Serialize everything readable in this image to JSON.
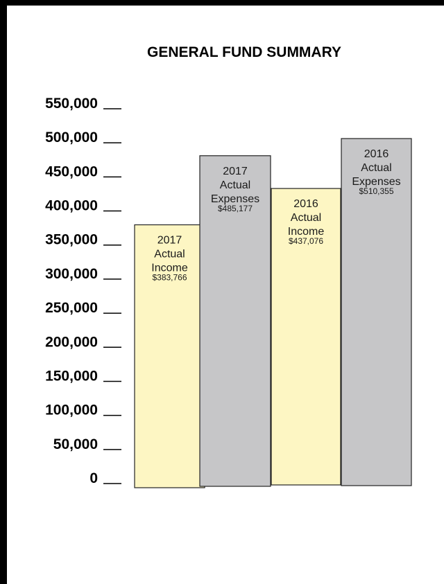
{
  "chart_data": {
    "type": "bar",
    "title": "GENERAL FUND SUMMARY",
    "xlabel": "",
    "ylabel": "",
    "ylim": [
      0,
      550000
    ],
    "yticks": [
      "0",
      "50,000",
      "100,000",
      "150,000",
      "200,000",
      "250,000",
      "300,000",
      "350,000",
      "400,000",
      "450,000",
      "500,000",
      "550,000"
    ],
    "tick_marker": "__",
    "grid": false,
    "legend": "none",
    "bars": [
      {
        "year": "2017",
        "kind": "Actual",
        "category": "Income",
        "amount": "$383,766",
        "value": 383766,
        "color": "#fdf6c3"
      },
      {
        "year": "2017",
        "kind": "Actual",
        "category": "Expenses",
        "amount": "$485,177",
        "value": 485177,
        "color": "#c6c6c8"
      },
      {
        "year": "2016",
        "kind": "Actual",
        "category": "Income",
        "amount": "$437,076",
        "value": 437076,
        "color": "#fdf6c3"
      },
      {
        "year": "2016",
        "kind": "Actual",
        "category": "Expenses",
        "amount": "$510,355",
        "value": 510355,
        "color": "#c6c6c8"
      }
    ]
  }
}
